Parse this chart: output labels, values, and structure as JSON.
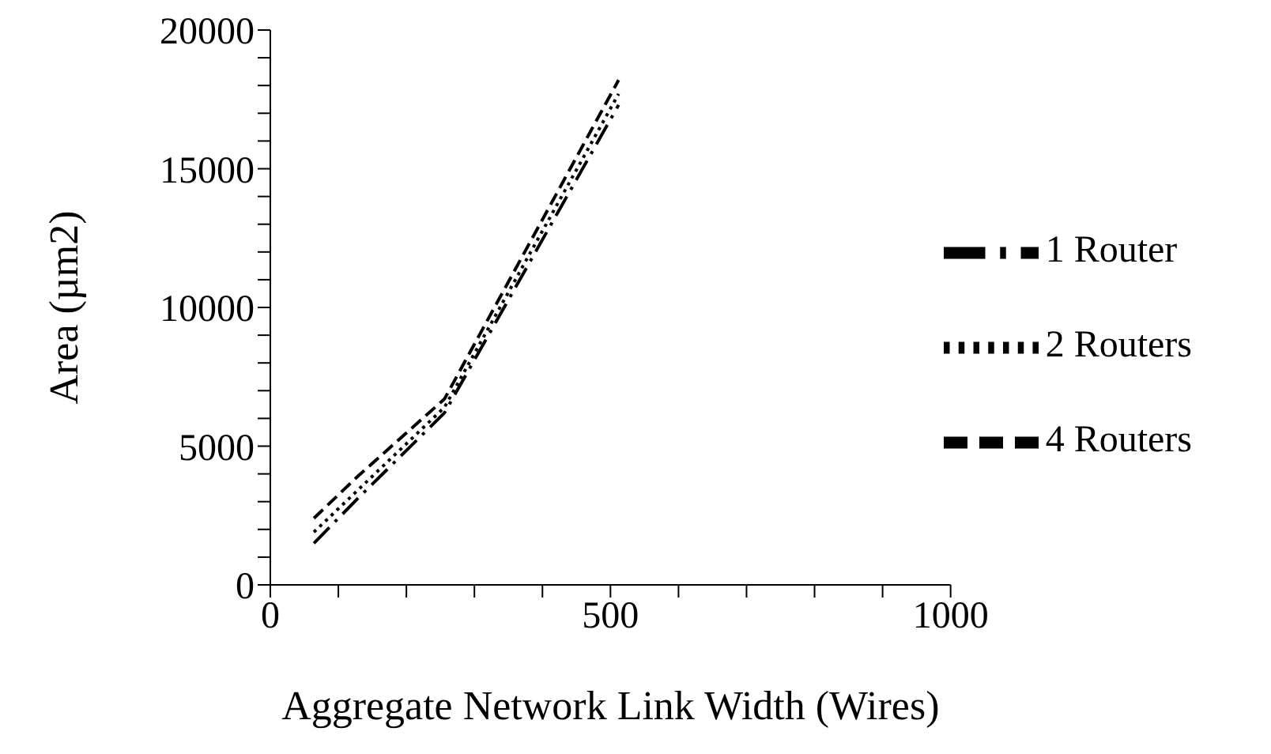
{
  "chart_data": {
    "type": "line",
    "xlabel": "Aggregate Network Link Width (Wires)",
    "ylabel": "Area (µm2)",
    "x": [
      64,
      128,
      256,
      512
    ],
    "series": [
      {
        "name": "1 Router",
        "color": "#000000",
        "line_style": "dashdot",
        "values": [
          1500,
          3100,
          6200,
          17300
        ]
      },
      {
        "name": "2 Routers",
        "color": "#000000",
        "line_style": "dotted",
        "values": [
          1900,
          3400,
          6400,
          17700
        ]
      },
      {
        "name": "4 Routers",
        "color": "#000000",
        "line_style": "dashed",
        "values": [
          2400,
          3900,
          6700,
          18200
        ]
      }
    ],
    "xlim": [
      0,
      1000
    ],
    "xticks": [
      0,
      {
        "value": 100,
        "label": null
      },
      {
        "value": 200,
        "label": null
      },
      {
        "value": 300,
        "label": null
      },
      {
        "value": 400,
        "label": null
      },
      500,
      {
        "value": 600,
        "label": null
      },
      {
        "value": 700,
        "label": null
      },
      {
        "value": 800,
        "label": null
      },
      {
        "value": 900,
        "label": null
      },
      1000
    ],
    "ylim": [
      0,
      20000
    ],
    "yticks": [
      0,
      {
        "value": 1000,
        "label": null
      },
      {
        "value": 2000,
        "label": null
      },
      {
        "value": 3000,
        "label": null
      },
      {
        "value": 4000,
        "label": null
      },
      5000,
      {
        "value": 6000,
        "label": null
      },
      {
        "value": 7000,
        "label": null
      },
      {
        "value": 8000,
        "label": null
      },
      {
        "value": 9000,
        "label": null
      },
      10000,
      {
        "value": 11000,
        "label": null
      },
      {
        "value": 12000,
        "label": null
      },
      {
        "value": 13000,
        "label": null
      },
      {
        "value": 14000,
        "label": null
      },
      15000,
      {
        "value": 16000,
        "label": null
      },
      {
        "value": 17000,
        "label": null
      },
      {
        "value": 18000,
        "label": null
      },
      {
        "value": 19000,
        "label": null
      },
      20000
    ],
    "legend": "right",
    "grid": false,
    "marker": "none"
  }
}
